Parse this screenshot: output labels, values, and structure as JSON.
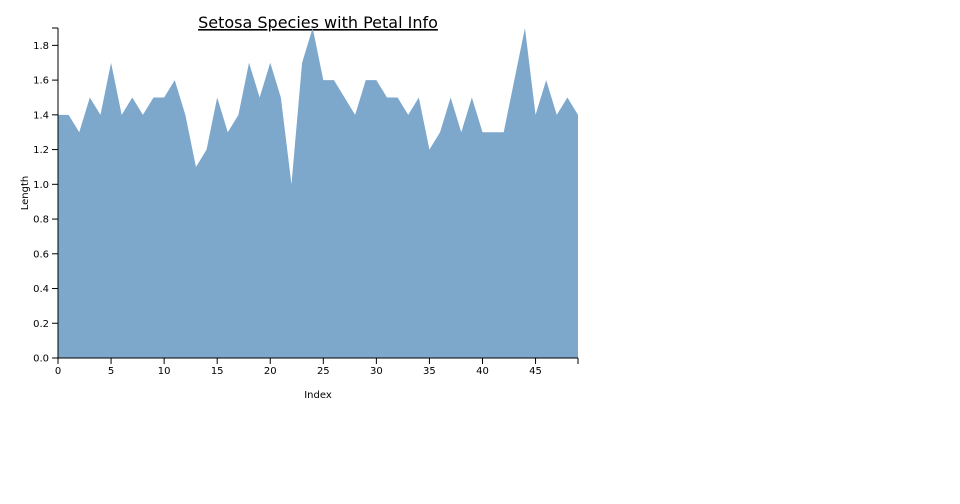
{
  "chart_data": {
    "type": "area",
    "title": "Setosa Species with Petal Info",
    "xlabel": "Index",
    "ylabel": "Length",
    "xlim": [
      0,
      49
    ],
    "ylim": [
      0,
      1.9
    ],
    "x_ticks": [
      0,
      5,
      10,
      15,
      20,
      25,
      30,
      35,
      40,
      45
    ],
    "y_ticks": [
      0.0,
      0.2,
      0.4,
      0.6,
      0.8,
      1.0,
      1.2,
      1.4,
      1.6,
      1.8
    ],
    "x_tick_labels": [
      "0",
      "5",
      "10",
      "15",
      "20",
      "25",
      "30",
      "35",
      "40",
      "45"
    ],
    "y_tick_labels": [
      "0.0",
      "0.2",
      "0.4",
      "0.6",
      "0.8",
      "1.0",
      "1.2",
      "1.4",
      "1.6",
      "1.8"
    ],
    "fill_color": "#7ea7cc",
    "x": [
      0,
      1,
      2,
      3,
      4,
      5,
      6,
      7,
      8,
      9,
      10,
      11,
      12,
      13,
      14,
      15,
      16,
      17,
      18,
      19,
      20,
      21,
      22,
      23,
      24,
      25,
      26,
      27,
      28,
      29,
      30,
      31,
      32,
      33,
      34,
      35,
      36,
      37,
      38,
      39,
      40,
      41,
      42,
      43,
      44,
      45,
      46,
      47,
      48,
      49
    ],
    "values": [
      1.4,
      1.4,
      1.3,
      1.5,
      1.4,
      1.7,
      1.4,
      1.5,
      1.4,
      1.5,
      1.5,
      1.6,
      1.4,
      1.1,
      1.2,
      1.5,
      1.3,
      1.4,
      1.7,
      1.5,
      1.7,
      1.5,
      1.0,
      1.7,
      1.9,
      1.6,
      1.6,
      1.5,
      1.4,
      1.6,
      1.6,
      1.5,
      1.5,
      1.4,
      1.5,
      1.2,
      1.3,
      1.5,
      1.3,
      1.5,
      1.3,
      1.3,
      1.3,
      1.6,
      1.9,
      1.4,
      1.6,
      1.4,
      1.5,
      1.4
    ],
    "grid": false,
    "legend": "none"
  }
}
